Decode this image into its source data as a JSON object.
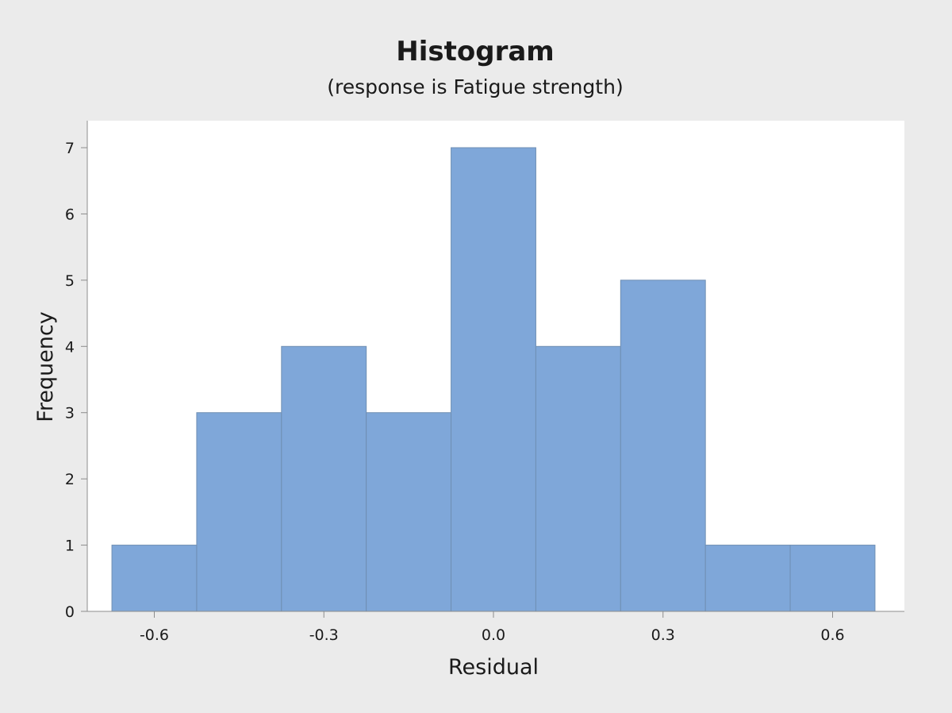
{
  "chart_data": {
    "type": "bar",
    "title": "Histogram",
    "subtitle": "(response is Fatigue strength)",
    "xlabel": "Residual",
    "ylabel": "Frequency",
    "bin_width": 0.15,
    "bins": [
      {
        "start": -0.675,
        "end": -0.525,
        "count": 1
      },
      {
        "start": -0.525,
        "end": -0.375,
        "count": 3
      },
      {
        "start": -0.375,
        "end": -0.225,
        "count": 4
      },
      {
        "start": -0.225,
        "end": -0.075,
        "count": 3
      },
      {
        "start": -0.075,
        "end": 0.075,
        "count": 7
      },
      {
        "start": 0.075,
        "end": 0.225,
        "count": 4
      },
      {
        "start": 0.225,
        "end": 0.375,
        "count": 5
      },
      {
        "start": 0.375,
        "end": 0.525,
        "count": 1
      },
      {
        "start": 0.525,
        "end": 0.675,
        "count": 1
      }
    ],
    "categories": [
      "-0.6",
      "-0.45",
      "-0.3",
      "-0.15",
      "0.0",
      "0.15",
      "0.3",
      "0.45",
      "0.6"
    ],
    "values": [
      1,
      3,
      4,
      3,
      7,
      4,
      5,
      1,
      1
    ],
    "x_ticks": [
      "-0.6",
      "-0.3",
      "0.0",
      "0.3",
      "0.6"
    ],
    "x_tick_values": [
      -0.6,
      -0.3,
      0.0,
      0.3,
      0.6
    ],
    "y_ticks": [
      "0",
      "1",
      "2",
      "3",
      "4",
      "5",
      "6",
      "7"
    ],
    "y_tick_values": [
      0,
      1,
      2,
      3,
      4,
      5,
      6,
      7
    ],
    "xlim": [
      -0.73,
      0.73
    ],
    "ylim": [
      0,
      7.4
    ],
    "grid": false,
    "legend": "none",
    "colors": {
      "bar_fill": "#7fa7d9",
      "bar_edge": "#6f8fb3",
      "background": "#ebebeb",
      "plot_background": "#ffffff",
      "axis": "#8c8c8c",
      "text": "#1a1a1a"
    }
  }
}
